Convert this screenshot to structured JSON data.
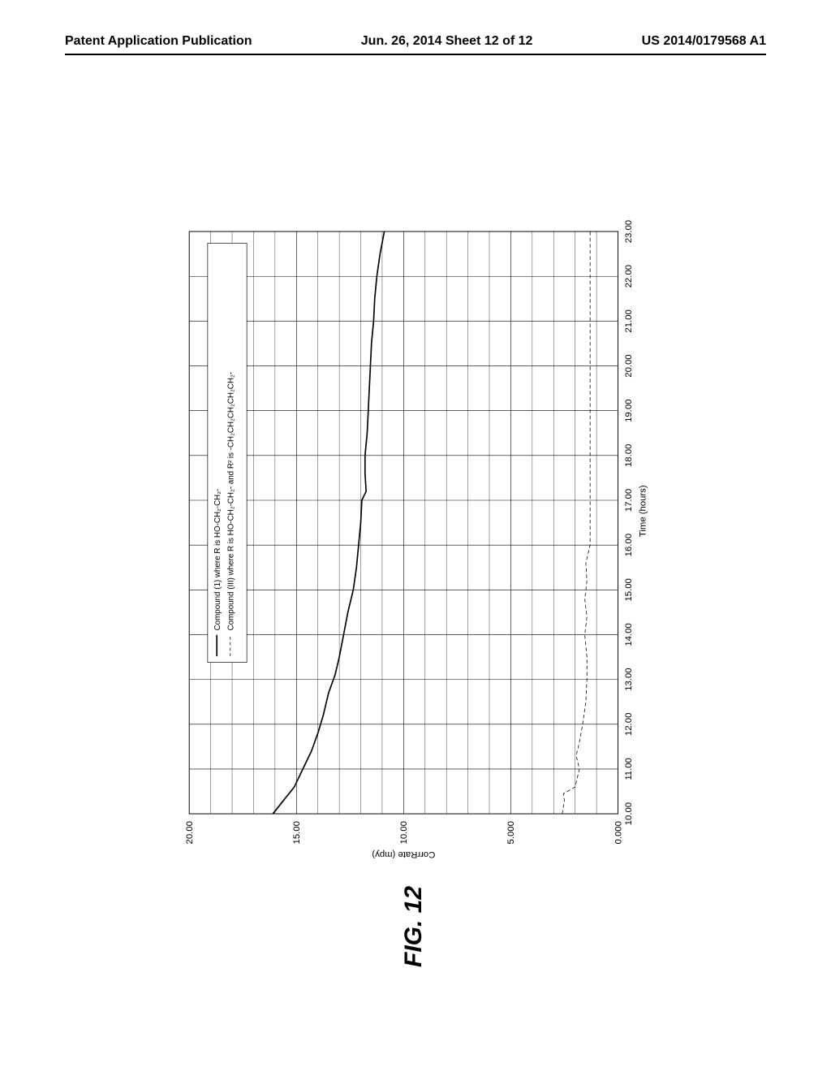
{
  "header": {
    "left": "Patent Application Publication",
    "center": "Jun. 26, 2014  Sheet 12 of 12",
    "right": "US 2014/0179568 A1"
  },
  "figure_label": "FIG. 12",
  "chart": {
    "type": "line",
    "background_color": "#ffffff",
    "grid_color": "#000000",
    "grid_stroke_width": 0.8,
    "axis_stroke_width": 1.2,
    "text_color": "#000000",
    "tick_fontsize": 15,
    "label_fontsize": 15,
    "legend_fontsize": 13,
    "x_axis": {
      "label": "Time (hours)",
      "min": 10.0,
      "max": 23.0,
      "ticks": [
        "10.00",
        "11.00",
        "12.00",
        "13.00",
        "14.00",
        "15.00",
        "16.00",
        "17.00",
        "18.00",
        "19.00",
        "20.00",
        "21.00",
        "22.00",
        "23.00"
      ]
    },
    "y_axis": {
      "label": "CorrRate (mpy)",
      "min": 0.0,
      "max": 20.0,
      "ticks": [
        "0.000",
        "5.000",
        "10.00",
        "15.00",
        "20.00"
      ]
    },
    "legend": {
      "items": [
        "Compound (1) where R is HO-CH₂-CH₂-",
        "Compound (III) where R is HO-CH₂-CH₂- and R² is -CH₂CH₂CH₂CH₂CH₂-"
      ]
    },
    "series": [
      {
        "name": "compound-1",
        "color": "#000000",
        "stroke_width": 2.2,
        "points": [
          [
            10.0,
            16.1
          ],
          [
            10.3,
            15.6
          ],
          [
            10.6,
            15.1
          ],
          [
            11.0,
            14.7
          ],
          [
            11.4,
            14.3
          ],
          [
            11.8,
            14.0
          ],
          [
            12.2,
            13.75
          ],
          [
            12.7,
            13.5
          ],
          [
            13.1,
            13.2
          ],
          [
            13.5,
            13.0
          ],
          [
            14.0,
            12.8
          ],
          [
            14.5,
            12.6
          ],
          [
            15.0,
            12.35
          ],
          [
            15.5,
            12.2
          ],
          [
            16.0,
            12.1
          ],
          [
            16.5,
            12.0
          ],
          [
            17.0,
            11.95
          ],
          [
            17.2,
            11.75
          ],
          [
            17.6,
            11.8
          ],
          [
            18.0,
            11.8
          ],
          [
            18.5,
            11.7
          ],
          [
            19.0,
            11.65
          ],
          [
            19.5,
            11.6
          ],
          [
            20.0,
            11.55
          ],
          [
            20.5,
            11.5
          ],
          [
            21.0,
            11.4
          ],
          [
            21.5,
            11.35
          ],
          [
            22.0,
            11.25
          ],
          [
            22.5,
            11.1
          ],
          [
            23.0,
            10.9
          ]
        ]
      },
      {
        "name": "compound-3",
        "color": "#000000",
        "stroke_width": 1.0,
        "dash": "6 4",
        "points": [
          [
            10.0,
            2.6
          ],
          [
            10.3,
            2.5
          ],
          [
            10.45,
            2.55
          ],
          [
            10.6,
            2.0
          ],
          [
            11.0,
            1.8
          ],
          [
            11.3,
            1.95
          ],
          [
            11.6,
            1.8
          ],
          [
            12.0,
            1.65
          ],
          [
            12.5,
            1.5
          ],
          [
            13.0,
            1.45
          ],
          [
            13.5,
            1.45
          ],
          [
            14.0,
            1.55
          ],
          [
            14.4,
            1.45
          ],
          [
            14.8,
            1.55
          ],
          [
            15.2,
            1.45
          ],
          [
            15.6,
            1.5
          ],
          [
            16.0,
            1.3
          ],
          [
            22.0,
            1.3
          ],
          [
            23.0,
            1.3
          ]
        ]
      }
    ]
  }
}
